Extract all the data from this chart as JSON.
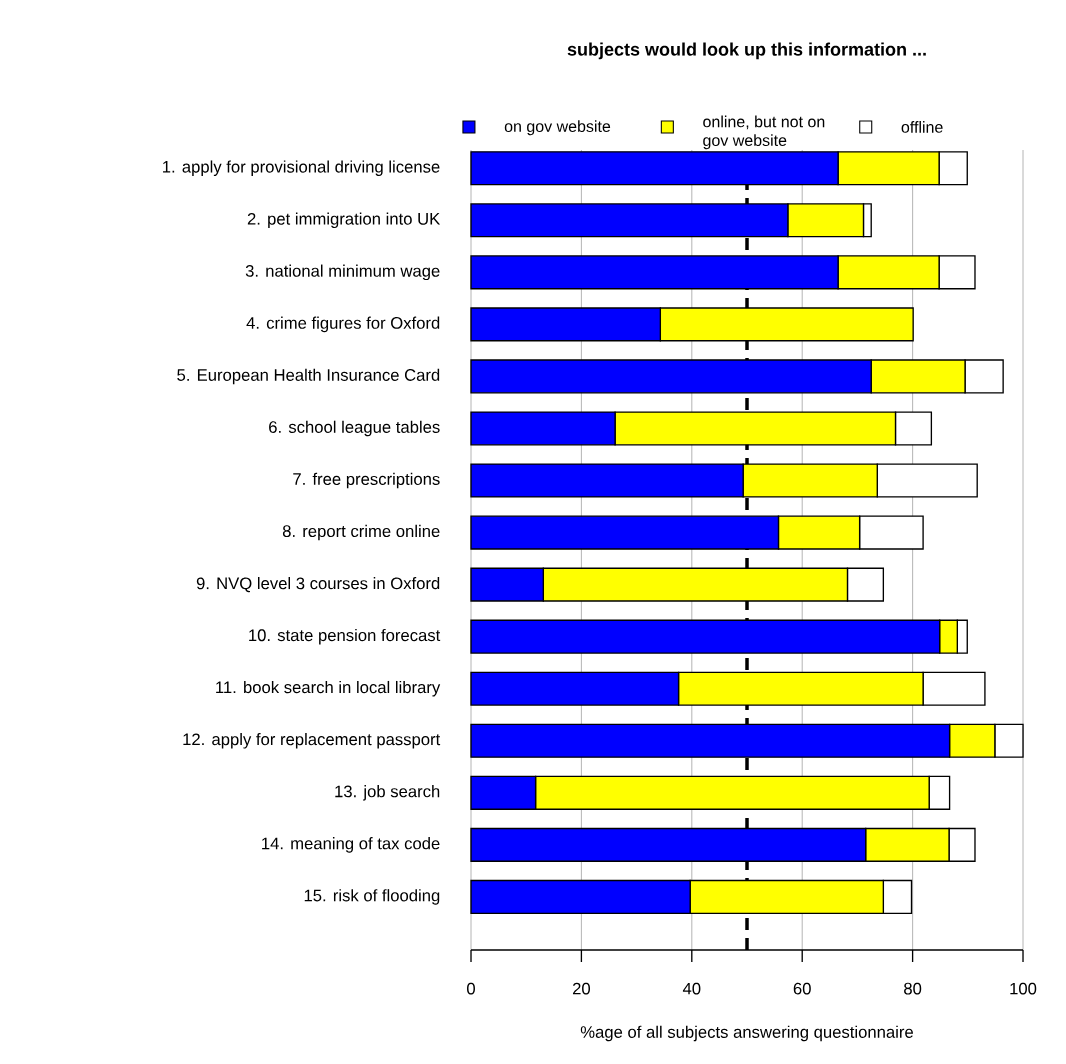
{
  "chart_data": {
    "type": "bar",
    "orientation": "horizontal",
    "stacked": true,
    "title": "subjects would look up this information ...",
    "xlabel": "%age of all subjects answering questionnaire",
    "categories": [
      "1. apply for provisional driving license",
      "2. pet immigration into UK",
      "3. national minimum wage",
      "4. crime figures for Oxford",
      "5. European Health Insurance Card",
      "6. school league tables",
      "7. free prescriptions",
      "8. report crime online",
      "9. NVQ level 3 courses in Oxford",
      "10. state pension forecast",
      "11. book search in local library",
      "12. apply for replacement passport",
      "13. job search",
      "14. meaning of tax code",
      "15. risk of flooding"
    ],
    "series": [
      {
        "name": "on gov website",
        "color": "#0000ff",
        "values": [
          66.5,
          57.4,
          66.5,
          34.3,
          72.5,
          26.1,
          49.3,
          55.7,
          13.1,
          84.9,
          37.6,
          86.7,
          11.7,
          71.5,
          39.7
        ]
      },
      {
        "name": "online, but not on gov website",
        "color": "#ffff00",
        "values": [
          18.3,
          13.7,
          18.3,
          45.8,
          17.0,
          50.8,
          24.3,
          14.7,
          55.1,
          3.2,
          44.3,
          8.2,
          71.3,
          15.1,
          35.0
        ]
      },
      {
        "name": "offline",
        "color": "#ffffff",
        "values": [
          5.1,
          1.4,
          6.5,
          0,
          6.9,
          6.5,
          18.1,
          11.5,
          6.5,
          1.8,
          11.2,
          5.1,
          3.7,
          4.7,
          5.1
        ]
      }
    ],
    "xlim": [
      0,
      100
    ],
    "xticks": [
      0,
      20,
      40,
      60,
      80,
      100
    ],
    "grid": "x",
    "legend": "top",
    "ref_lines": [
      {
        "axis": "x",
        "value": 50,
        "color": "#000000",
        "line_style": "dashed"
      }
    ]
  }
}
